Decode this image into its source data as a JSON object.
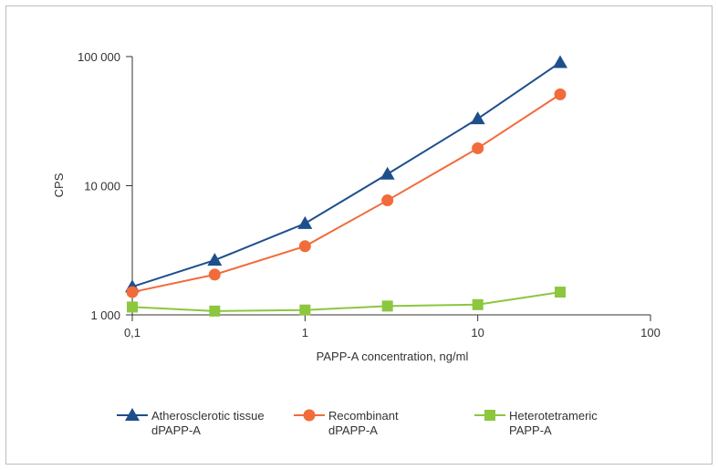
{
  "chart_data": {
    "type": "line",
    "title": "",
    "xlabel": "PAPP-A concentration, ng/ml",
    "ylabel": "CPS",
    "x_scale": "log",
    "y_scale": "log",
    "xlim": [
      0.1,
      100
    ],
    "ylim": [
      1000,
      100000
    ],
    "x_ticks": [
      {
        "value": 0.1,
        "label": "0,1"
      },
      {
        "value": 1,
        "label": "1"
      },
      {
        "value": 10,
        "label": "10"
      },
      {
        "value": 100,
        "label": "100"
      }
    ],
    "y_ticks": [
      {
        "value": 1000,
        "label": "1 000"
      },
      {
        "value": 10000,
        "label": "10 000"
      },
      {
        "value": 100000,
        "label": "100 000"
      }
    ],
    "grid": false,
    "legend_position": "bottom",
    "x": [
      0.1,
      0.3,
      1,
      3,
      10,
      30
    ],
    "series": [
      {
        "name_lines": [
          "Atherosclerotic tissue",
          "dPAPP-A"
        ],
        "color": "#1f4e8c",
        "marker": "triangle",
        "values": [
          1650,
          2650,
          5100,
          12300,
          33000,
          90000
        ]
      },
      {
        "name_lines": [
          "Recombinant",
          "dPAPP-A"
        ],
        "color": "#f26b3a",
        "marker": "circle",
        "values": [
          1500,
          2050,
          3400,
          7700,
          19500,
          51000
        ]
      },
      {
        "name_lines": [
          "Heterotetrameric",
          "PAPP-A"
        ],
        "color": "#8dc63f",
        "marker": "square",
        "values": [
          1150,
          1070,
          1090,
          1170,
          1200,
          1500
        ]
      }
    ]
  }
}
